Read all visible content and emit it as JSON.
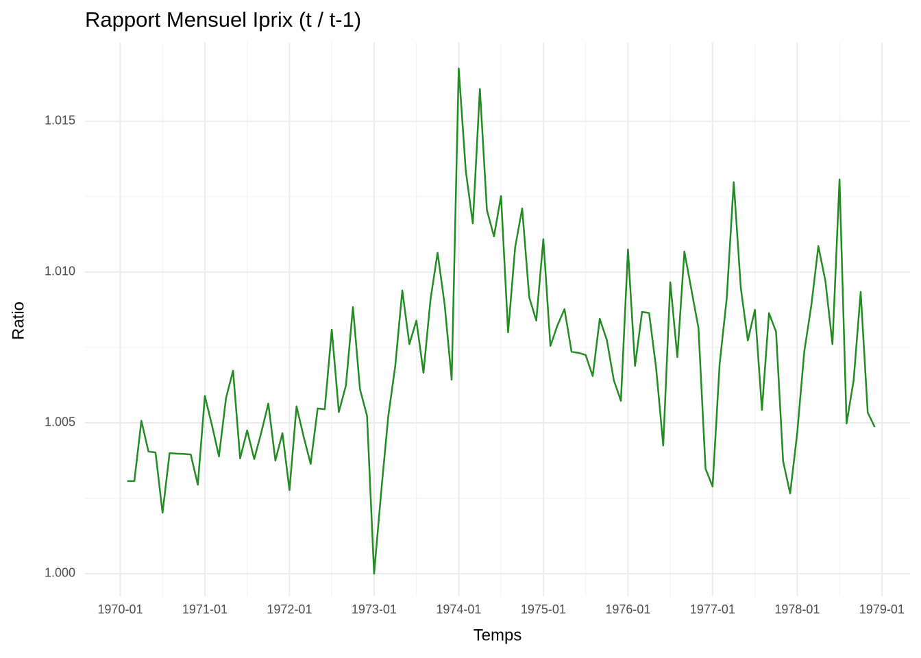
{
  "chart_data": {
    "type": "line",
    "title": "Rapport Mensuel Iprix (t / t-1)",
    "x_label": "Temps",
    "y_label": "Ratio",
    "x": [
      "1970-02",
      "1970-03",
      "1970-04",
      "1970-05",
      "1970-06",
      "1970-07",
      "1970-08",
      "1970-09",
      "1970-10",
      "1970-11",
      "1970-12",
      "1971-01",
      "1971-02",
      "1971-03",
      "1971-04",
      "1971-05",
      "1971-06",
      "1971-07",
      "1971-08",
      "1971-09",
      "1971-10",
      "1971-11",
      "1971-12",
      "1972-01",
      "1972-02",
      "1972-03",
      "1972-04",
      "1972-05",
      "1972-06",
      "1972-07",
      "1972-08",
      "1972-09",
      "1972-10",
      "1972-11",
      "1972-12",
      "1973-01",
      "1973-02",
      "1973-03",
      "1973-04",
      "1973-05",
      "1973-06",
      "1973-07",
      "1973-08",
      "1973-09",
      "1973-10",
      "1973-11",
      "1973-12",
      "1974-01",
      "1974-02",
      "1974-03",
      "1974-04",
      "1974-05",
      "1974-06",
      "1974-07",
      "1974-08",
      "1974-09",
      "1974-10",
      "1974-11",
      "1974-12",
      "1975-01",
      "1975-02",
      "1975-03",
      "1975-04",
      "1975-05",
      "1975-06",
      "1975-07",
      "1975-08",
      "1975-09",
      "1975-10",
      "1975-11",
      "1975-12",
      "1976-01",
      "1976-02",
      "1976-03",
      "1976-04",
      "1976-05",
      "1976-06",
      "1976-07",
      "1976-08",
      "1976-09",
      "1976-10",
      "1976-11",
      "1976-12",
      "1977-01",
      "1977-02",
      "1977-03",
      "1977-04",
      "1977-05",
      "1977-06",
      "1977-07",
      "1977-08",
      "1977-09",
      "1977-10",
      "1977-11",
      "1977-12",
      "1978-01",
      "1978-02",
      "1978-03",
      "1978-04",
      "1978-05",
      "1978-06",
      "1978-07",
      "1978-08",
      "1978-09",
      "1978-10",
      "1978-11",
      "1978-12"
    ],
    "series": [
      {
        "name": "Ratio",
        "color": "#228B22",
        "values": [
          1.00307,
          1.00307,
          1.00507,
          1.00405,
          1.00402,
          1.00202,
          1.004,
          1.00398,
          1.00397,
          1.00395,
          1.00295,
          1.00589,
          1.00493,
          1.00389,
          1.00582,
          1.00673,
          1.00382,
          1.00475,
          1.0038,
          1.00468,
          1.00564,
          1.00375,
          1.00466,
          1.00277,
          1.00555,
          1.00455,
          1.00364,
          1.00548,
          1.00545,
          1.00809,
          1.00536,
          1.00623,
          1.00884,
          1.00611,
          1.00523,
          1.0,
          1.0027,
          1.0052,
          1.00689,
          1.00939,
          1.00761,
          1.00839,
          1.00666,
          1.00909,
          1.01064,
          1.00893,
          1.00643,
          1.01675,
          1.01336,
          1.01161,
          1.01607,
          1.01205,
          1.01118,
          1.01252,
          1.008,
          1.01082,
          1.01211,
          1.00916,
          1.00839,
          1.01109,
          1.00755,
          1.00823,
          1.00877,
          1.00736,
          1.00732,
          1.00725,
          1.00655,
          1.00845,
          1.00775,
          1.00641,
          1.00573,
          1.01075,
          1.00689,
          1.00868,
          1.00864,
          1.0068,
          1.00425,
          1.00966,
          1.00718,
          1.01068,
          1.00941,
          1.00814,
          1.00348,
          1.00289,
          1.00695,
          1.00911,
          1.01298,
          1.00948,
          1.00773,
          1.00875,
          1.00543,
          1.00864,
          1.00802,
          1.00373,
          1.00266,
          1.00466,
          1.00736,
          1.00889,
          1.01086,
          1.0097,
          1.00761,
          1.01307,
          1.00498,
          1.00641,
          1.00934,
          1.00534,
          1.00486
        ]
      }
    ],
    "xlim": [
      "1969-08",
      "1979-05"
    ],
    "xticks": [
      "1970-01",
      "1971-01",
      "1972-01",
      "1973-01",
      "1974-01",
      "1975-01",
      "1976-01",
      "1977-01",
      "1978-01",
      "1979-01"
    ],
    "xminor": [
      "1970-07",
      "1971-07",
      "1972-07",
      "1973-07",
      "1974-07",
      "1975-07",
      "1976-07",
      "1977-07",
      "1978-07"
    ],
    "ylim": [
      0.99925,
      1.01761
    ],
    "yticks": [
      {
        "value": 1,
        "label": "1.000"
      },
      {
        "value": 1.005,
        "label": "1.005"
      },
      {
        "value": 1.01,
        "label": "1.010"
      },
      {
        "value": 1.015,
        "label": "1.015"
      }
    ],
    "yminor": [
      1.0025,
      1.0075,
      1.0125
    ],
    "grid": true
  }
}
